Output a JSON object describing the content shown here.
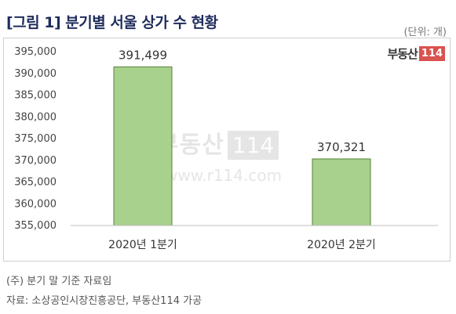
{
  "header": {
    "title": "[그림 1] 분기별 서울 상가 수 현황",
    "unit": "(단위: 개)"
  },
  "brand": {
    "text": "부동산",
    "number": "114"
  },
  "watermark": {
    "text": "부동산",
    "number": "114",
    "url": "www.r114.com"
  },
  "chart_data": {
    "type": "bar",
    "categories": [
      "2020년 1분기",
      "2020년 2분기"
    ],
    "values": [
      391499,
      370321
    ],
    "value_labels": [
      "391,499",
      "370,321"
    ],
    "title": "",
    "xlabel": "",
    "ylabel": "",
    "ylim": [
      355000,
      395000
    ],
    "yticks": [
      395000,
      390000,
      385000,
      380000,
      375000,
      370000,
      365000,
      360000,
      355000
    ],
    "ytick_labels": [
      "395,000",
      "390,000",
      "385,000",
      "380,000",
      "375,000",
      "370,000",
      "365,000",
      "360,000",
      "355,000"
    ],
    "grid": false,
    "legend": "none",
    "bar_color": "#a9d18e",
    "bar_edge_color": "#548235"
  },
  "footer": {
    "note": "(주) 분기 말 기준 자료임",
    "source": "자료: 소상공인시장진흥공단, 부동산114 가공"
  }
}
